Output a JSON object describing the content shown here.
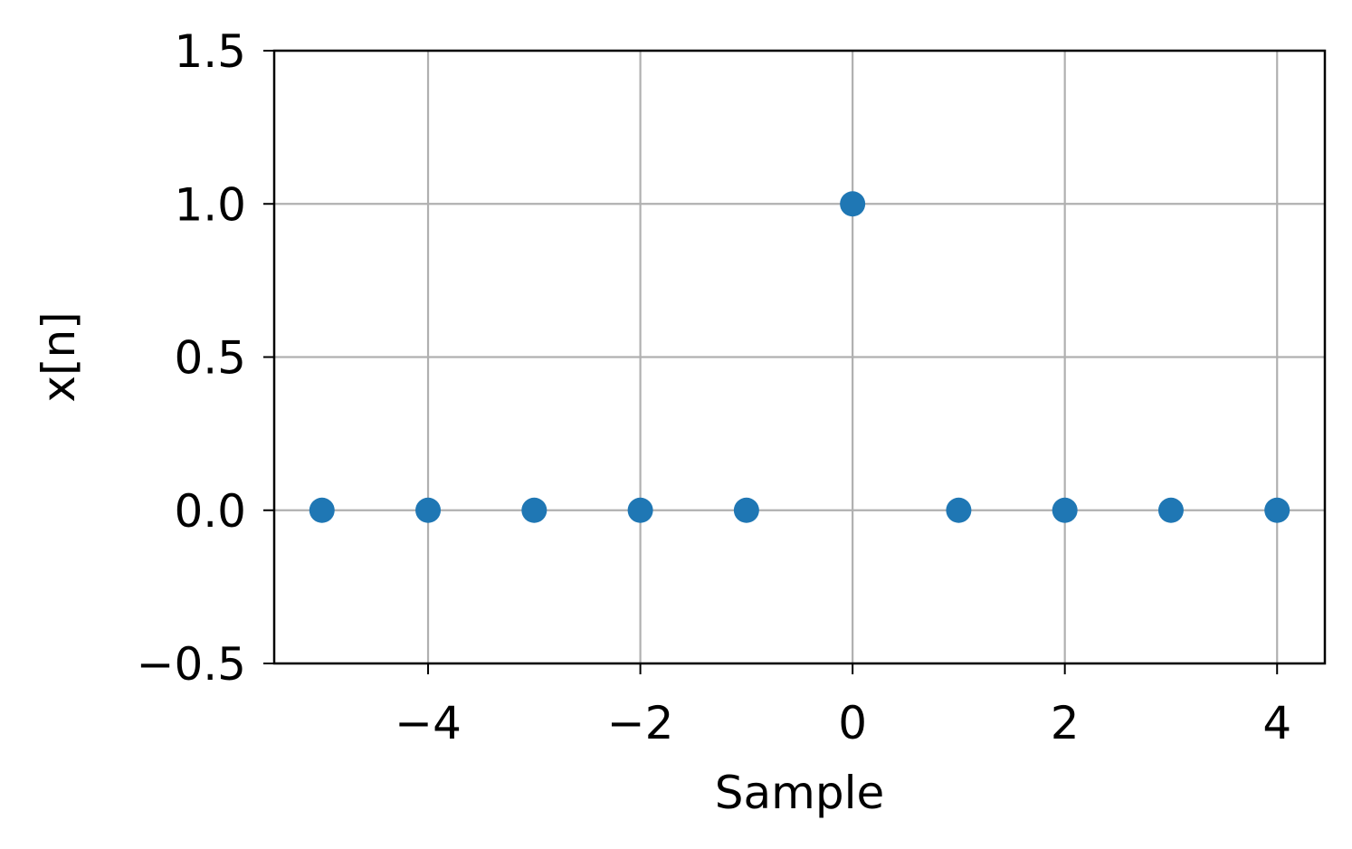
{
  "chart_data": {
    "type": "scatter",
    "title": "",
    "xlabel": "Sample",
    "ylabel": "x[n]",
    "xlim": [
      -5.45,
      4.45
    ],
    "ylim": [
      -0.5,
      1.5
    ],
    "x_ticks": [
      -4,
      -2,
      0,
      2,
      4
    ],
    "x_tick_labels": [
      "−4",
      "−2",
      "0",
      "2",
      "4"
    ],
    "y_ticks": [
      -0.5,
      0.0,
      0.5,
      1.0,
      1.5
    ],
    "y_tick_labels": [
      "−0.5",
      "0.0",
      "0.5",
      "1.0",
      "1.5"
    ],
    "grid": true,
    "legend": "none",
    "series": [
      {
        "color": "#1f77b4",
        "marker": "circle",
        "x": [
          -5,
          -4,
          -3,
          -2,
          -1,
          0,
          1,
          2,
          3,
          4
        ],
        "y": [
          0,
          0,
          0,
          0,
          0,
          1,
          0,
          0,
          0,
          0
        ]
      }
    ]
  }
}
